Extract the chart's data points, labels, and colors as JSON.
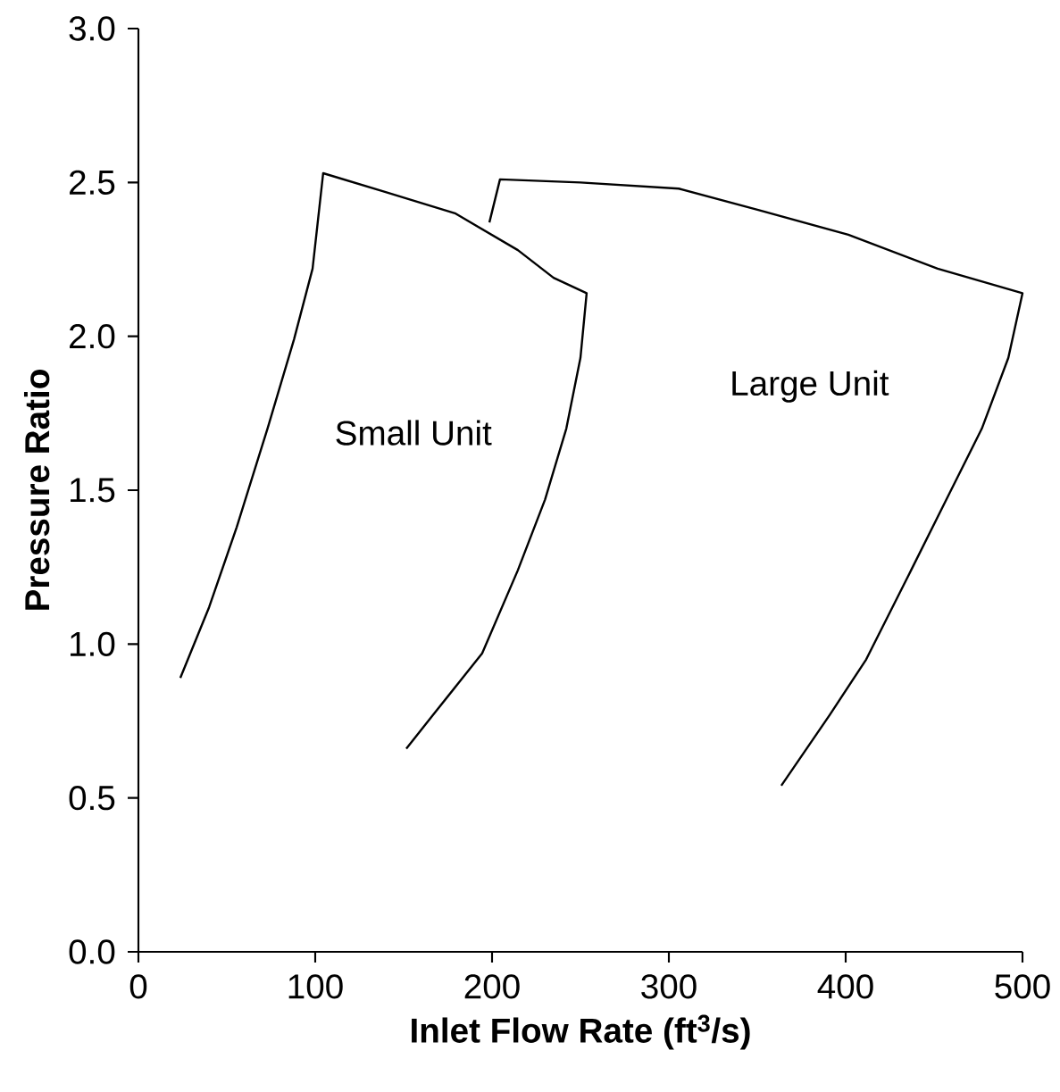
{
  "chart_data": {
    "type": "line",
    "xlabel": "Inlet Flow Rate  (ft$^{3}$/s)",
    "ylabel": "Pressure Ratio",
    "xlim": [
      0,
      500
    ],
    "ylim": [
      0,
      3.0
    ],
    "xticks": [
      0,
      100,
      200,
      300,
      400,
      500
    ],
    "yticks": [
      {
        "value": 0,
        "label": "0.0"
      },
      {
        "value": 0.5,
        "label": "0.5"
      },
      {
        "value": 1.0,
        "label": "1.0"
      },
      {
        "value": 1.5,
        "label": "1.5"
      },
      {
        "value": 2.0,
        "label": "2.0"
      },
      {
        "value": 2.5,
        "label": "2.5"
      },
      {
        "value": 3.0,
        "label": "3.0"
      }
    ],
    "grid": false,
    "marker": "none",
    "line_style": "solid",
    "series": [
      {
        "name": "Small Unit",
        "color": "#000000",
        "x": [
          23.7,
          40,
          55.6,
          73,
          88,
          98.5,
          104.5,
          139,
          179,
          214.6,
          234.8,
          253.5,
          250,
          242,
          230,
          214.6,
          194.4,
          166.7,
          151.5
        ],
        "values": [
          0.89,
          1.12,
          1.38,
          1.7,
          1.99,
          2.22,
          2.53,
          2.47,
          2.4,
          2.28,
          2.19,
          2.14,
          1.93,
          1.7,
          1.47,
          1.24,
          0.97,
          0.77,
          0.66
        ]
      },
      {
        "name": "Large Unit",
        "color": "#000000",
        "x": [
          198.5,
          204.5,
          250,
          305.6,
          351,
          401.5,
          452,
          500,
          492,
          477,
          457,
          437,
          411.6,
          391,
          363.6
        ],
        "values": [
          2.37,
          2.51,
          2.5,
          2.48,
          2.41,
          2.33,
          2.22,
          2.14,
          1.93,
          1.7,
          1.47,
          1.24,
          0.95,
          0.77,
          0.54
        ]
      }
    ]
  }
}
